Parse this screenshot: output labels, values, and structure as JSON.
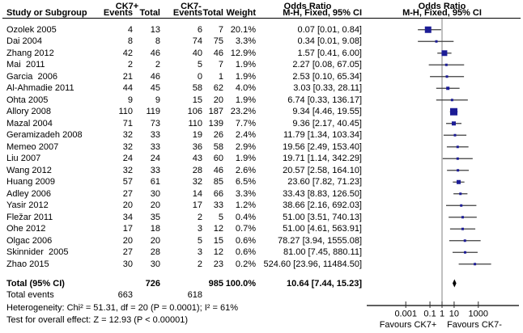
{
  "chart_data": {
    "type": "scatter",
    "variant": "forest-plot-meta-analysis",
    "x_scale": "log10",
    "header": {
      "study_col": "Study or Subgroup",
      "group1_label": "CK7+",
      "group2_label": "CK7-",
      "events_col": "Events",
      "total_col": "Total",
      "weight_col": "Weight",
      "or_col_title": "Odds Ratio",
      "method_col": "M-H, Fixed, 95% CI",
      "plot_col_title": "Odds Ratio",
      "plot_method_col": "M-H, Fixed, 95% CI"
    },
    "studies": [
      {
        "name": "Ozolek 2005",
        "events1": "4",
        "total1": "13",
        "events2": "6",
        "total2": "7",
        "weight": "20.1%",
        "weight_pct": 20.1,
        "or_label": "0.07 [0.01, 0.84]",
        "or": 0.07,
        "ci_low": 0.01,
        "ci_high": 0.84
      },
      {
        "name": "Dai 2004",
        "events1": "8",
        "total1": "8",
        "events2": "74",
        "total2": "75",
        "weight": "3.3%",
        "weight_pct": 3.3,
        "or_label": "0.34 [0.01, 9.08]",
        "or": 0.34,
        "ci_low": 0.01,
        "ci_high": 9.08
      },
      {
        "name": "Zhang 2012",
        "events1": "42",
        "total1": "46",
        "events2": "40",
        "total2": "46",
        "weight": "12.9%",
        "weight_pct": 12.9,
        "or_label": "1.57 [0.41, 6.00]",
        "or": 1.57,
        "ci_low": 0.41,
        "ci_high": 6.0
      },
      {
        "name": "Mai  2011",
        "events1": "2",
        "total1": "2",
        "events2": "5",
        "total2": "7",
        "weight": "1.9%",
        "weight_pct": 1.9,
        "or_label": "2.27 [0.08, 67.05]",
        "or": 2.27,
        "ci_low": 0.08,
        "ci_high": 67.05
      },
      {
        "name": "Garcia  2006",
        "events1": "21",
        "total1": "46",
        "events2": "0",
        "total2": "1",
        "weight": "1.9%",
        "weight_pct": 1.9,
        "or_label": "2.53 [0.10, 65.34]",
        "or": 2.53,
        "ci_low": 0.1,
        "ci_high": 65.34
      },
      {
        "name": "Al-Ahmadie 2011",
        "events1": "44",
        "total1": "45",
        "events2": "58",
        "total2": "62",
        "weight": "4.0%",
        "weight_pct": 4.0,
        "or_label": "3.03 [0.33, 28.11]",
        "or": 3.03,
        "ci_low": 0.33,
        "ci_high": 28.11
      },
      {
        "name": "Ohta 2005",
        "events1": "9",
        "total1": "9",
        "events2": "15",
        "total2": "20",
        "weight": "1.9%",
        "weight_pct": 1.9,
        "or_label": "6.74 [0.33, 136.17]",
        "or": 6.74,
        "ci_low": 0.33,
        "ci_high": 136.17
      },
      {
        "name": "Allory 2008",
        "events1": "110",
        "total1": "119",
        "events2": "106",
        "total2": "187",
        "weight": "23.2%",
        "weight_pct": 23.2,
        "or_label": "9.34 [4.46, 19.55]",
        "or": 9.34,
        "ci_low": 4.46,
        "ci_high": 19.55
      },
      {
        "name": "Mazal 2004",
        "events1": "71",
        "total1": "73",
        "events2": "110",
        "total2": "139",
        "weight": "7.7%",
        "weight_pct": 7.7,
        "or_label": "9.36 [2.17, 40.45]",
        "or": 9.36,
        "ci_low": 2.17,
        "ci_high": 40.45
      },
      {
        "name": "Geramizadeh 2008",
        "events1": "32",
        "total1": "33",
        "events2": "19",
        "total2": "26",
        "weight": "2.4%",
        "weight_pct": 2.4,
        "or_label": "11.79 [1.34, 103.34]",
        "or": 11.79,
        "ci_low": 1.34,
        "ci_high": 103.34
      },
      {
        "name": "Memeo 2007",
        "events1": "32",
        "total1": "33",
        "events2": "36",
        "total2": "58",
        "weight": "2.9%",
        "weight_pct": 2.9,
        "or_label": "19.56 [2.49, 153.40]",
        "or": 19.56,
        "ci_low": 2.49,
        "ci_high": 153.4
      },
      {
        "name": "Liu 2007",
        "events1": "24",
        "total1": "24",
        "events2": "43",
        "total2": "60",
        "weight": "1.9%",
        "weight_pct": 1.9,
        "or_label": "19.71 [1.14, 342.29]",
        "or": 19.71,
        "ci_low": 1.14,
        "ci_high": 342.29
      },
      {
        "name": "Wang 2012",
        "events1": "32",
        "total1": "33",
        "events2": "28",
        "total2": "46",
        "weight": "2.6%",
        "weight_pct": 2.6,
        "or_label": "20.57 [2.58, 164.10]",
        "or": 20.57,
        "ci_low": 2.58,
        "ci_high": 164.1
      },
      {
        "name": "Huang 2009",
        "events1": "57",
        "total1": "61",
        "events2": "32",
        "total2": "85",
        "weight": "6.5%",
        "weight_pct": 6.5,
        "or_label": "23.60 [7.82, 71.23]",
        "or": 23.6,
        "ci_low": 7.82,
        "ci_high": 71.23
      },
      {
        "name": "Adley 2006",
        "events1": "27",
        "total1": "30",
        "events2": "14",
        "total2": "66",
        "weight": "3.3%",
        "weight_pct": 3.3,
        "or_label": "33.43 [8.83, 126.50]",
        "or": 33.43,
        "ci_low": 8.83,
        "ci_high": 126.5
      },
      {
        "name": "Yasir 2012",
        "events1": "20",
        "total1": "20",
        "events2": "17",
        "total2": "33",
        "weight": "1.2%",
        "weight_pct": 1.2,
        "or_label": "38.66 [2.16, 692.03]",
        "or": 38.66,
        "ci_low": 2.16,
        "ci_high": 692.03
      },
      {
        "name": "Fležar 2011",
        "events1": "34",
        "total1": "35",
        "events2": "2",
        "total2": "5",
        "weight": "0.4%",
        "weight_pct": 0.4,
        "or_label": "51.00 [3.51, 740.13]",
        "or": 51.0,
        "ci_low": 3.51,
        "ci_high": 740.13
      },
      {
        "name": "Ohe 2012",
        "events1": "17",
        "total1": "18",
        "events2": "3",
        "total2": "12",
        "weight": "0.7%",
        "weight_pct": 0.7,
        "or_label": "51.00 [4.61, 563.91]",
        "or": 51.0,
        "ci_low": 4.61,
        "ci_high": 563.91
      },
      {
        "name": "Olgac 2006",
        "events1": "20",
        "total1": "20",
        "events2": "5",
        "total2": "15",
        "weight": "0.6%",
        "weight_pct": 0.6,
        "or_label": "78.27 [3.94, 1555.08]",
        "or": 78.27,
        "ci_low": 3.94,
        "ci_high": 1555.08
      },
      {
        "name": "Skinnider  2005",
        "events1": "27",
        "total1": "28",
        "events2": "3",
        "total2": "12",
        "weight": "0.6%",
        "weight_pct": 0.6,
        "or_label": "81.00 [7.45, 880.11]",
        "or": 81.0,
        "ci_low": 7.45,
        "ci_high": 880.11
      },
      {
        "name": "Zhao 2015",
        "events1": "30",
        "total1": "30",
        "events2": "2",
        "total2": "23",
        "weight": "0.2%",
        "weight_pct": 0.2,
        "or_label": "524.60 [23.96, 11484.50]",
        "or": 524.6,
        "ci_low": 23.96,
        "ci_high": 11484.5
      }
    ],
    "totals": {
      "label": "Total (95% CI)",
      "total1": "726",
      "total2": "985",
      "weight": "100.0%",
      "or_label": "10.64 [7.44, 15.23]",
      "or": 10.64,
      "ci_low": 7.44,
      "ci_high": 15.23
    },
    "total_events": {
      "label": "Total events",
      "events1": "663",
      "events2": "618"
    },
    "heterogeneity": "Heterogeneity: Chi² = 51.31, df = 20 (P = 0.0001); I² = 61%",
    "overall_effect": "Test for overall effect: Z = 12.93 (P < 0.00001)",
    "axis": {
      "ticks": [
        0.001,
        0.1,
        1,
        10,
        1000
      ],
      "tick_labels": [
        "0.001",
        "0.1",
        "1",
        "10",
        "1000"
      ],
      "favours_left": "Favours CK7+",
      "favours_right": "Favours CK7-"
    },
    "colors": {
      "marker": "#1c1c96",
      "ci_line": "#3d3d3d",
      "diamond": "#000000",
      "axis_line": "#2b2b2b",
      "null_line": "#808080",
      "text": "#000000"
    }
  }
}
